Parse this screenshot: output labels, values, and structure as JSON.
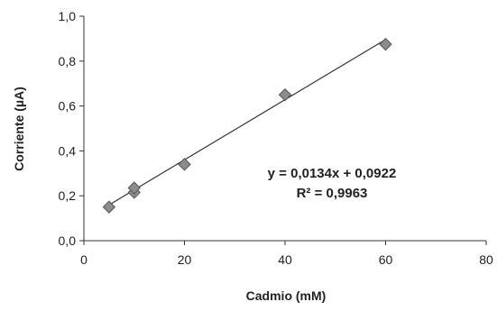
{
  "chart_data": {
    "type": "scatter",
    "xlabel": "Cadmio (mM)",
    "ylabel": "Corriente (µA)",
    "xlim": [
      0,
      80
    ],
    "ylim": [
      0,
      1.0
    ],
    "x_ticks": [
      0,
      20,
      40,
      60,
      80
    ],
    "y_ticks": [
      0.0,
      0.2,
      0.4,
      0.6,
      0.8,
      1.0
    ],
    "x_tick_labels": [
      "0",
      "20",
      "40",
      "60",
      "80"
    ],
    "y_tick_labels": [
      "0,0",
      "0,2",
      "0,4",
      "0,6",
      "0,8",
      "1,0"
    ],
    "grid": false,
    "marker": "diamond",
    "marker_color": "#8c8c8c",
    "line_color": "#333333",
    "points": [
      {
        "x": 5,
        "y": 0.15
      },
      {
        "x": 10,
        "y": 0.215
      },
      {
        "x": 10,
        "y": 0.235
      },
      {
        "x": 20,
        "y": 0.34
      },
      {
        "x": 40,
        "y": 0.65
      },
      {
        "x": 60,
        "y": 0.875
      }
    ],
    "trendline": {
      "slope": 0.0134,
      "intercept": 0.0922,
      "x_range": [
        5,
        60
      ]
    },
    "annotations": [
      "y = 0,0134x + 0,0922",
      "R² = 0,9963"
    ]
  }
}
